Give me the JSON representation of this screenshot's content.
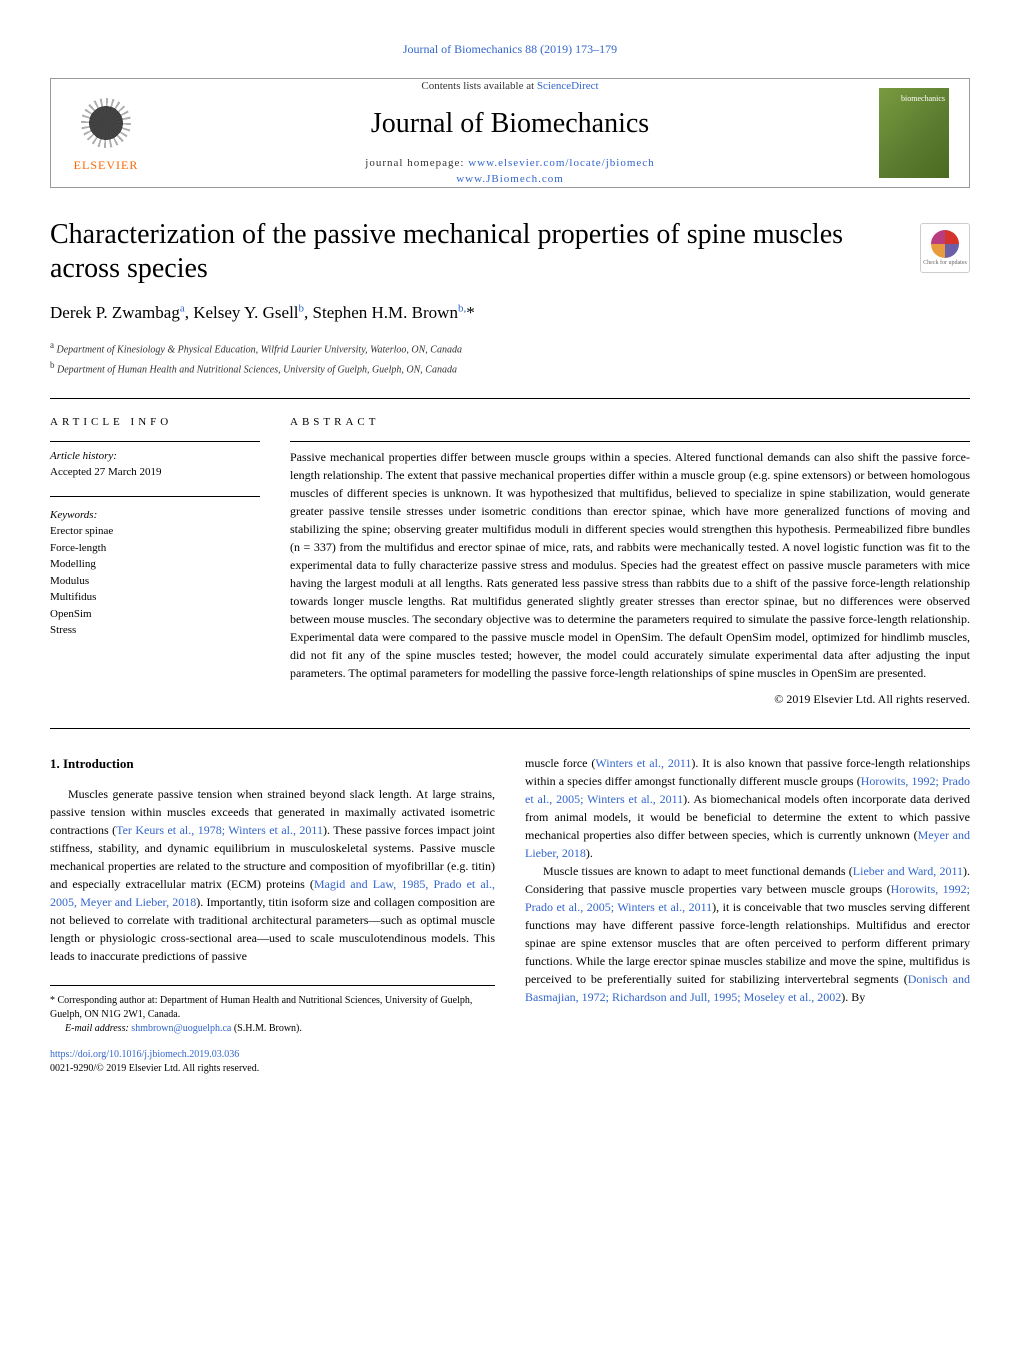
{
  "journal_ref": "Journal of Biomechanics 88 (2019) 173–179",
  "header": {
    "contents_prefix": "Contents lists available at ",
    "contents_link": "ScienceDirect",
    "journal_name": "Journal of Biomechanics",
    "homepage_prefix": "journal homepage: ",
    "homepage_url1": "www.elsevier.com/locate/jbiomech",
    "homepage_url2": "www.JBiomech.com",
    "publisher": "ELSEVIER",
    "cover_text": "biomechanics"
  },
  "article": {
    "title": "Characterization of the passive mechanical properties of spine muscles across species",
    "check_updates": "Check for updates",
    "authors": "Derek P. Zwambag",
    "author_sup_a": "a",
    "author2": ", Kelsey Y. Gsell",
    "author_sup_b": "b",
    "author3": ", Stephen H.M. Brown",
    "author_sup_b2": "b,",
    "author_star": "*",
    "affil_a_sup": "a",
    "affil_a": " Department of Kinesiology & Physical Education, Wilfrid Laurier University, Waterloo, ON, Canada",
    "affil_b_sup": "b",
    "affil_b": " Department of Human Health and Nutritional Sciences, University of Guelph, Guelph, ON, Canada"
  },
  "info": {
    "heading": "ARTICLE INFO",
    "history_label": "Article history:",
    "accepted": "Accepted 27 March 2019",
    "keywords_label": "Keywords:",
    "keywords": [
      "Erector spinae",
      "Force-length",
      "Modelling",
      "Modulus",
      "Multifidus",
      "OpenSim",
      "Stress"
    ]
  },
  "abstract": {
    "heading": "ABSTRACT",
    "text": "Passive mechanical properties differ between muscle groups within a species. Altered functional demands can also shift the passive force-length relationship. The extent that passive mechanical properties differ within a muscle group (e.g. spine extensors) or between homologous muscles of different species is unknown. It was hypothesized that multifidus, believed to specialize in spine stabilization, would generate greater passive tensile stresses under isometric conditions than erector spinae, which have more generalized functions of moving and stabilizing the spine; observing greater multifidus moduli in different species would strengthen this hypothesis. Permeabilized fibre bundles (n = 337) from the multifidus and erector spinae of mice, rats, and rabbits were mechanically tested. A novel logistic function was fit to the experimental data to fully characterize passive stress and modulus. Species had the greatest effect on passive muscle parameters with mice having the largest moduli at all lengths. Rats generated less passive stress than rabbits due to a shift of the passive force-length relationship towards longer muscle lengths. Rat multifidus generated slightly greater stresses than erector spinae, but no differences were observed between mouse muscles. The secondary objective was to determine the parameters required to simulate the passive force-length relationship. Experimental data were compared to the passive muscle model in OpenSim. The default OpenSim model, optimized for hindlimb muscles, did not fit any of the spine muscles tested; however, the model could accurately simulate experimental data after adjusting the input parameters. The optimal parameters for modelling the passive force-length relationships of spine muscles in OpenSim are presented.",
    "copyright": "© 2019 Elsevier Ltd. All rights reserved."
  },
  "intro": {
    "heading": "1. Introduction",
    "para1_a": "Muscles generate passive tension when strained beyond slack length. At large strains, passive tension within muscles exceeds that generated in maximally activated isometric contractions (",
    "cite1": "Ter Keurs et al., 1978; Winters et al., 2011",
    "para1_b": "). These passive forces impact joint stiffness, stability, and dynamic equilibrium in musculoskeletal systems. Passive muscle mechanical properties are related to the structure and composition of myofibrillar (e.g. titin) and especially extracellular matrix (ECM) proteins (",
    "cite2": "Magid and Law, 1985, Prado et al., 2005, Meyer and Lieber, 2018",
    "para1_c": "). Importantly, titin isoform size and collagen composition are not believed to correlate with traditional architectural parameters—such as optimal muscle length or physiologic cross-sectional area—used to scale musculotendinous models. This leads to inaccurate predictions of passive",
    "para2_a": "muscle force (",
    "cite3": "Winters et al., 2011",
    "para2_b": "). It is also known that passive force-length relationships within a species differ amongst functionally different muscle groups (",
    "cite4": "Horowits, 1992; Prado et al., 2005; Winters et al., 2011",
    "para2_c": "). As biomechanical models often incorporate data derived from animal models, it would be beneficial to determine the extent to which passive mechanical properties also differ between species, which is currently unknown (",
    "cite5": "Meyer and Lieber, 2018",
    "para2_d": ").",
    "para3_a": "Muscle tissues are known to adapt to meet functional demands (",
    "cite6": "Lieber and Ward, 2011",
    "para3_b": "). Considering that passive muscle properties vary between muscle groups (",
    "cite7": "Horowits, 1992; Prado et al., 2005; Winters et al., 2011",
    "para3_c": "), it is conceivable that two muscles serving different functions may have different passive force-length relationships. Multifidus and erector spinae are spine extensor muscles that are often perceived to perform different primary functions. While the large erector spinae muscles stabilize and move the spine, multifidus is perceived to be preferentially suited for stabilizing intervertebral segments (",
    "cite8": "Donisch and Basmajian, 1972; Richardson and Jull, 1995; Moseley et al., 2002",
    "para3_d": "). By"
  },
  "footnote": {
    "star": "*",
    "corr_text": " Corresponding author at: Department of Human Health and Nutritional Sciences, University of Guelph, Guelph, ON N1G 2W1, Canada.",
    "email_label": "E-mail address: ",
    "email": "shmbrown@uoguelph.ca",
    "email_suffix": " (S.H.M. Brown)."
  },
  "footer": {
    "doi": "https://doi.org/10.1016/j.jbiomech.2019.03.036",
    "issn_line": "0021-9290/© 2019 Elsevier Ltd. All rights reserved."
  }
}
